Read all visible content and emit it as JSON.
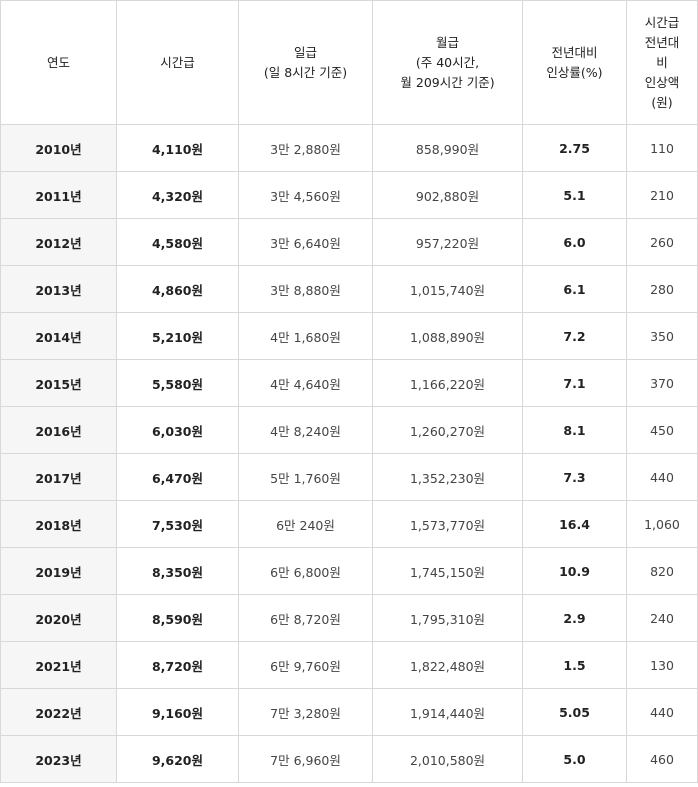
{
  "table": {
    "headers": {
      "year": [
        "연도"
      ],
      "hourly": [
        "시간급"
      ],
      "daily": [
        "일급",
        "(일 8시간 기준)"
      ],
      "monthly": [
        "월급",
        "(주 40시간,",
        "월 209시간 기준)"
      ],
      "rate": [
        "전년대비",
        "인상률(%)"
      ],
      "amount": [
        "시간급",
        "전년대",
        "비",
        "인상액",
        "(원)"
      ]
    },
    "rows": [
      {
        "year": "2010년",
        "hourly": "4,110원",
        "daily": "3만 2,880원",
        "monthly": "858,990원",
        "rate": "2.75",
        "amount": "110"
      },
      {
        "year": "2011년",
        "hourly": "4,320원",
        "daily": "3만 4,560원",
        "monthly": "902,880원",
        "rate": "5.1",
        "amount": "210"
      },
      {
        "year": "2012년",
        "hourly": "4,580원",
        "daily": "3만 6,640원",
        "monthly": "957,220원",
        "rate": "6.0",
        "amount": "260"
      },
      {
        "year": "2013년",
        "hourly": "4,860원",
        "daily": "3만 8,880원",
        "monthly": "1,015,740원",
        "rate": "6.1",
        "amount": "280"
      },
      {
        "year": "2014년",
        "hourly": "5,210원",
        "daily": "4만 1,680원",
        "monthly": "1,088,890원",
        "rate": "7.2",
        "amount": "350"
      },
      {
        "year": "2015년",
        "hourly": "5,580원",
        "daily": "4만 4,640원",
        "monthly": "1,166,220원",
        "rate": "7.1",
        "amount": "370"
      },
      {
        "year": "2016년",
        "hourly": "6,030원",
        "daily": "4만 8,240원",
        "monthly": "1,260,270원",
        "rate": "8.1",
        "amount": "450"
      },
      {
        "year": "2017년",
        "hourly": "6,470원",
        "daily": "5만 1,760원",
        "monthly": "1,352,230원",
        "rate": "7.3",
        "amount": "440"
      },
      {
        "year": "2018년",
        "hourly": "7,530원",
        "daily": "6만 240원",
        "monthly": "1,573,770원",
        "rate": "16.4",
        "amount": "1,060"
      },
      {
        "year": "2019년",
        "hourly": "8,350원",
        "daily": "6만 6,800원",
        "monthly": "1,745,150원",
        "rate": "10.9",
        "amount": "820"
      },
      {
        "year": "2020년",
        "hourly": "8,590원",
        "daily": "6만 8,720원",
        "monthly": "1,795,310원",
        "rate": "2.9",
        "amount": "240"
      },
      {
        "year": "2021년",
        "hourly": "8,720원",
        "daily": "6만 9,760원",
        "monthly": "1,822,480원",
        "rate": "1.5",
        "amount": "130"
      },
      {
        "year": "2022년",
        "hourly": "9,160원",
        "daily": "7만 3,280원",
        "monthly": "1,914,440원",
        "rate": "5.05",
        "amount": "440"
      },
      {
        "year": "2023년",
        "hourly": "9,620원",
        "daily": "7만 6,960원",
        "monthly": "2,010,580원",
        "rate": "5.0",
        "amount": "460"
      }
    ]
  }
}
